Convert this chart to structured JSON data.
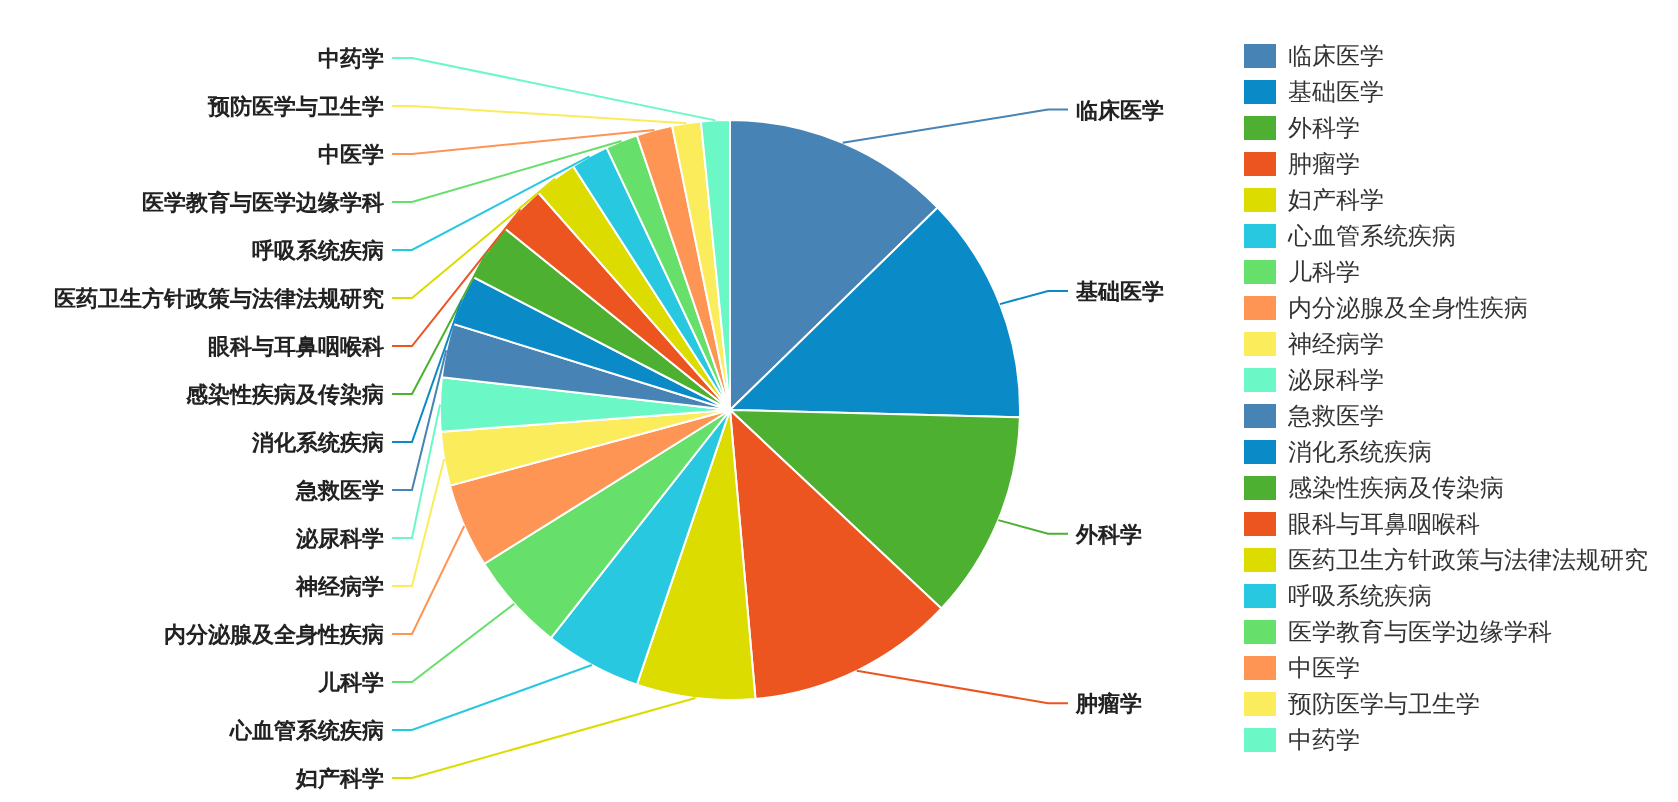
{
  "chart_data": {
    "type": "pie",
    "legend": "right",
    "categories": [
      "临床医学",
      "基础医学",
      "外科学",
      "肿瘤学",
      "妇产科学",
      "心血管系统疾病",
      "儿科学",
      "内分泌腺及全身性疾病",
      "神经病学",
      "泌尿科学",
      "急救医学",
      "消化系统疾病",
      "感染性疾病及传染病",
      "眼科与耳鼻咽喉科",
      "医药卫生方针政策与法律法规研究",
      "呼吸系统疾病",
      "医学教育与医学边缘学科",
      "中医学",
      "预防医学与卫生学",
      "中药学"
    ],
    "values": [
      12.7,
      12.7,
      11.6,
      11.6,
      6.6,
      5.4,
      5.5,
      4.7,
      3.0,
      3.0,
      3.0,
      2.8,
      3.2,
      2.7,
      2.4,
      2.1,
      1.8,
      2.0,
      1.6,
      1.6
    ],
    "colors": [
      "#4783b5",
      "#0b8ac8",
      "#4eb030",
      "#ec5520",
      "#dcdc00",
      "#27c8e0",
      "#66e06a",
      "#fe9554",
      "#fbec5c",
      "#6bf7c6",
      "#4783b5",
      "#0b8ac8",
      "#4eb030",
      "#ec5520",
      "#dcdc00",
      "#27c8e0",
      "#66e06a",
      "#fe9554",
      "#fbec5c",
      "#6bf7c6"
    ]
  }
}
